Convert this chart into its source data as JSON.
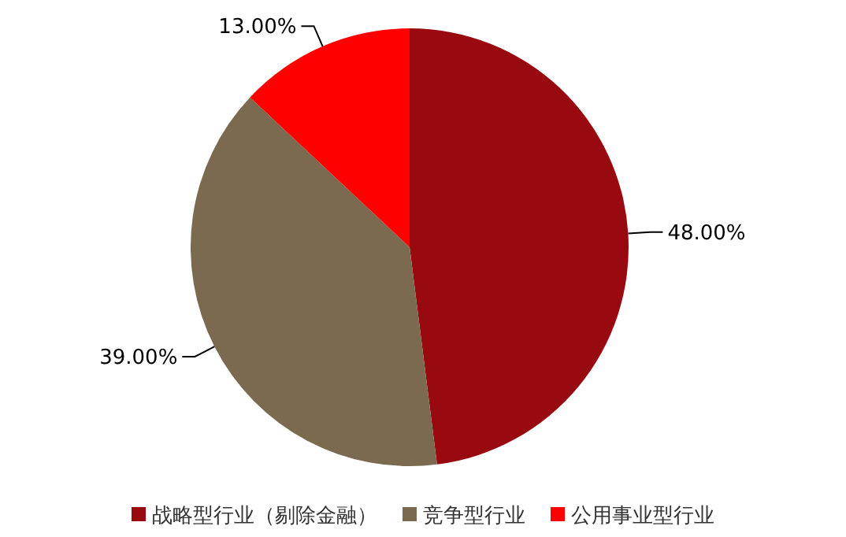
{
  "chart_data": {
    "type": "pie",
    "categories": [
      "战略型行业（剔除金融）",
      "竞争型行业",
      "公用事业型行业"
    ],
    "values": [
      48,
      39,
      13
    ],
    "colors": [
      "#990a10",
      "#7b6a4f",
      "#ff0000"
    ],
    "value_labels": [
      "48.00%",
      "39.00%",
      "13.00%"
    ],
    "legend": "bottom"
  }
}
